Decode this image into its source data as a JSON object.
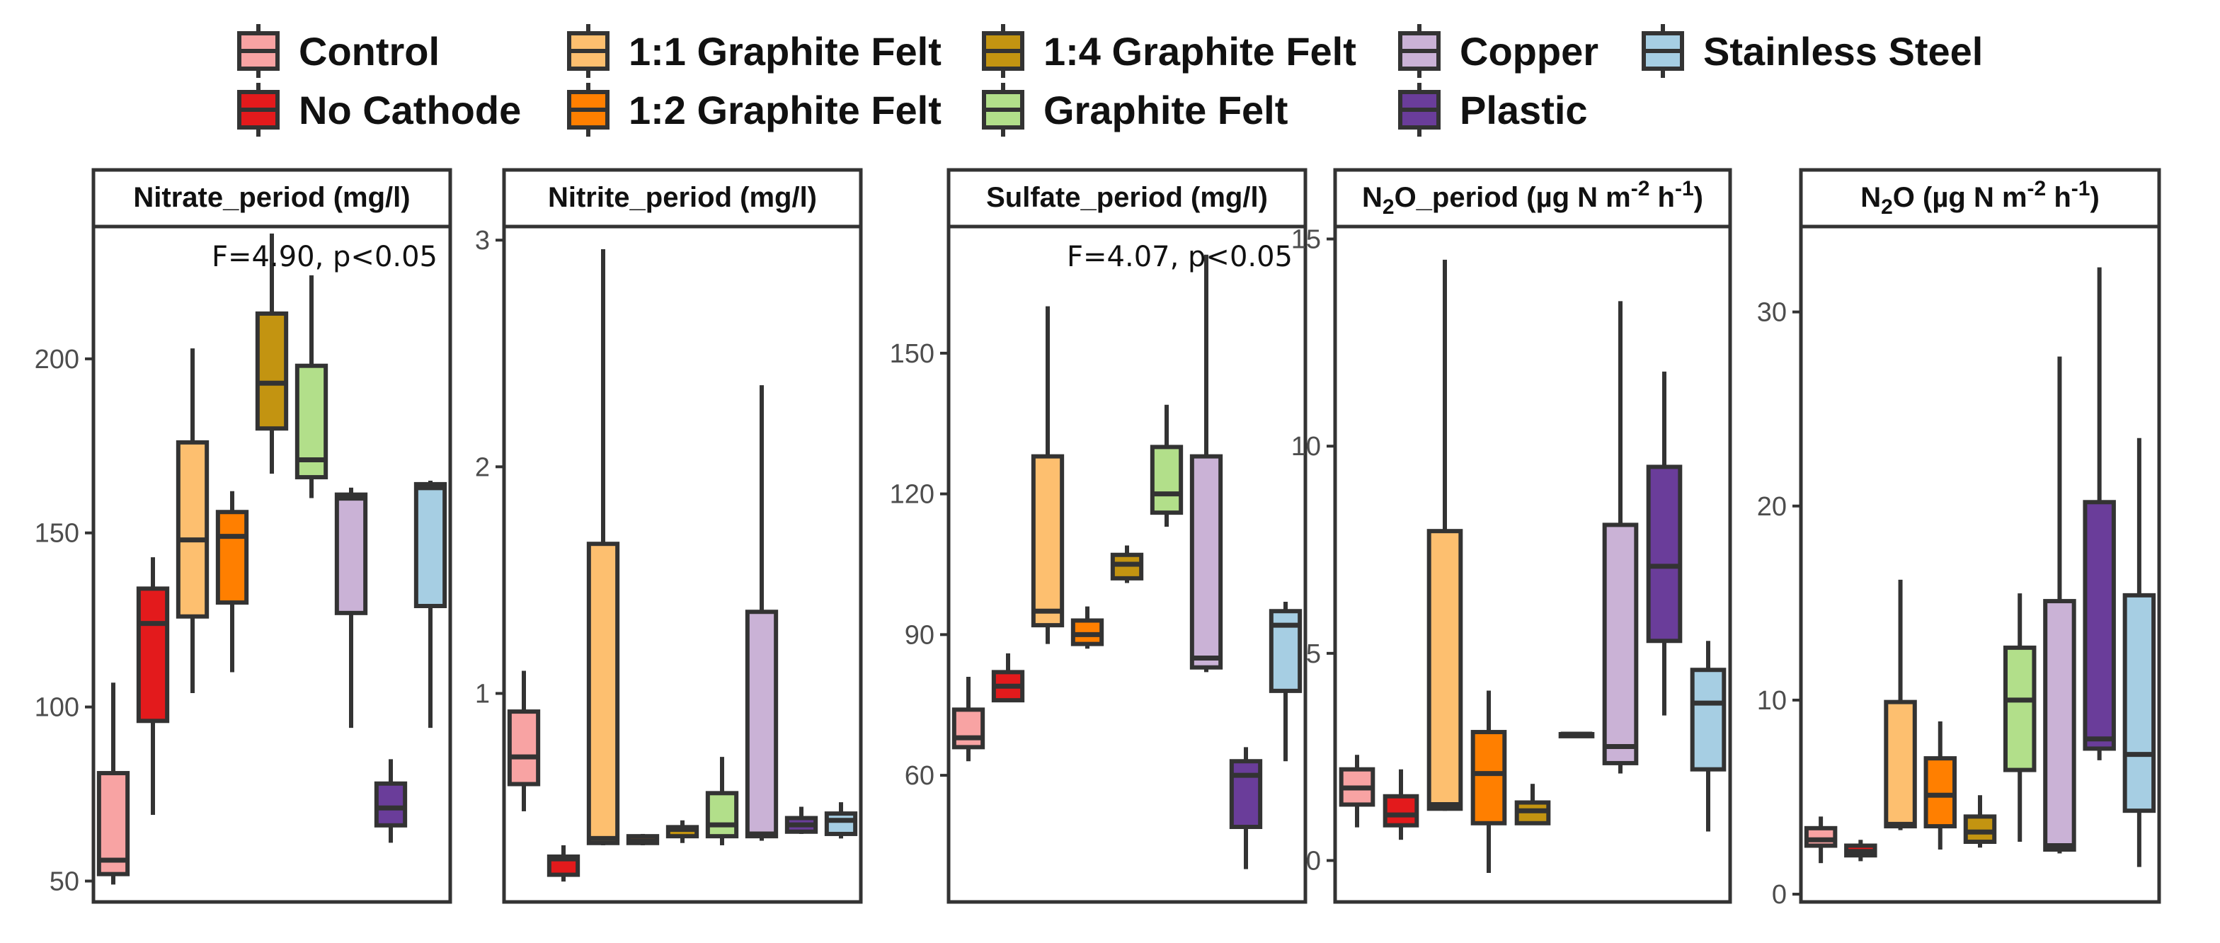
{
  "legend": {
    "items": [
      {
        "label": "Control",
        "color": "#F8A3A3"
      },
      {
        "label": "1:1 Graphite Felt",
        "color": "#FDBF6F"
      },
      {
        "label": "1:4 Graphite Felt",
        "color": "#C39411"
      },
      {
        "label": "Copper",
        "color": "#CAB2D6"
      },
      {
        "label": "Stainless Steel",
        "color": "#A6CEE3"
      },
      {
        "label": "No Cathode",
        "color": "#E31A1C"
      },
      {
        "label": "1:2 Graphite Felt",
        "color": "#FF7F00"
      },
      {
        "label": "Graphite Felt",
        "color": "#B2DF8A"
      },
      {
        "label": "Plastic",
        "color": "#6A3D9A"
      }
    ]
  },
  "chart_data": [
    {
      "type": "boxplot",
      "title": "Nitrate_period (mg/l)",
      "annotation": "F=4.90, p<0.05",
      "ylim": [
        44,
        238
      ],
      "yticks": [
        50,
        100,
        150,
        200
      ],
      "boxes": [
        {
          "group": "Control",
          "color": "#F8A3A3",
          "min": 49,
          "q1": 52,
          "median": 56,
          "q3": 81,
          "max": 107
        },
        {
          "group": "No Cathode",
          "color": "#E31A1C",
          "min": 69,
          "q1": 96,
          "median": 124,
          "q3": 134,
          "max": 143
        },
        {
          "group": "1:1 Graphite Felt",
          "color": "#FDBF6F",
          "min": 104,
          "q1": 126,
          "median": 148,
          "q3": 176,
          "max": 203
        },
        {
          "group": "1:2 Graphite Felt",
          "color": "#FF7F00",
          "min": 110,
          "q1": 130,
          "median": 149,
          "q3": 156,
          "max": 162
        },
        {
          "group": "1:4 Graphite Felt",
          "color": "#C39411",
          "min": 167,
          "q1": 180,
          "median": 193,
          "q3": 213,
          "max": 236
        },
        {
          "group": "Graphite Felt",
          "color": "#B2DF8A",
          "min": 160,
          "q1": 166,
          "median": 171,
          "q3": 198,
          "max": 224
        },
        {
          "group": "Copper",
          "color": "#CAB2D6",
          "min": 94,
          "q1": 127,
          "median": 160,
          "q3": 161,
          "max": 163
        },
        {
          "group": "Plastic",
          "color": "#6A3D9A",
          "min": 61,
          "q1": 66,
          "median": 71,
          "q3": 78,
          "max": 85
        },
        {
          "group": "Stainless Steel",
          "color": "#A6CEE3",
          "min": 94,
          "q1": 129,
          "median": 163,
          "q3": 164,
          "max": 165
        }
      ]
    },
    {
      "type": "boxplot",
      "title": "Nitrite_period (mg/l)",
      "annotation": "",
      "ylim": [
        0.08,
        3.06
      ],
      "yticks": [
        1,
        2,
        3
      ],
      "boxes": [
        {
          "group": "Control",
          "color": "#F8A3A3",
          "min": 0.48,
          "q1": 0.6,
          "median": 0.72,
          "q3": 0.92,
          "max": 1.1
        },
        {
          "group": "No Cathode",
          "color": "#E31A1C",
          "min": 0.17,
          "q1": 0.2,
          "median": 0.27,
          "q3": 0.28,
          "max": 0.33
        },
        {
          "group": "1:1 Graphite Felt",
          "color": "#FDBF6F",
          "min": 0.33,
          "q1": 0.34,
          "median": 0.36,
          "q3": 1.66,
          "max": 2.96
        },
        {
          "group": "1:2 Graphite Felt",
          "color": "#FF7F00",
          "min": 0.33,
          "q1": 0.34,
          "median": 0.35,
          "q3": 0.37,
          "max": 0.38
        },
        {
          "group": "1:4 Graphite Felt",
          "color": "#C39411",
          "min": 0.34,
          "q1": 0.37,
          "median": 0.4,
          "q3": 0.41,
          "max": 0.44
        },
        {
          "group": "Graphite Felt",
          "color": "#B2DF8A",
          "min": 0.33,
          "q1": 0.37,
          "median": 0.42,
          "q3": 0.56,
          "max": 0.72
        },
        {
          "group": "Copper",
          "color": "#CAB2D6",
          "min": 0.35,
          "q1": 0.37,
          "median": 0.38,
          "q3": 1.36,
          "max": 2.36
        },
        {
          "group": "Plastic",
          "color": "#6A3D9A",
          "min": 0.38,
          "q1": 0.39,
          "median": 0.42,
          "q3": 0.45,
          "max": 0.5
        },
        {
          "group": "Stainless Steel",
          "color": "#A6CEE3",
          "min": 0.36,
          "q1": 0.38,
          "median": 0.44,
          "q3": 0.47,
          "max": 0.52
        }
      ]
    },
    {
      "type": "boxplot",
      "title": "Sulfate_period (mg/l)",
      "annotation": "F=4.07, p<0.05",
      "ylim": [
        33,
        177
      ],
      "yticks": [
        60,
        90,
        120,
        150
      ],
      "boxes": [
        {
          "group": "Control",
          "color": "#F8A3A3",
          "min": 63,
          "q1": 66,
          "median": 68,
          "q3": 74,
          "max": 81
        },
        {
          "group": "No Cathode",
          "color": "#E31A1C",
          "min": 76,
          "q1": 76,
          "median": 79,
          "q3": 82,
          "max": 86
        },
        {
          "group": "1:1 Graphite Felt",
          "color": "#FDBF6F",
          "min": 88,
          "q1": 92,
          "median": 95,
          "q3": 128,
          "max": 160
        },
        {
          "group": "1:2 Graphite Felt",
          "color": "#FF7F00",
          "min": 87,
          "q1": 88,
          "median": 90,
          "q3": 93,
          "max": 96
        },
        {
          "group": "1:4 Graphite Felt",
          "color": "#C39411",
          "min": 101,
          "q1": 102,
          "median": 105,
          "q3": 107,
          "max": 109
        },
        {
          "group": "Graphite Felt",
          "color": "#B2DF8A",
          "min": 113,
          "q1": 116,
          "median": 120,
          "q3": 130,
          "max": 139
        },
        {
          "group": "Copper",
          "color": "#CAB2D6",
          "min": 82,
          "q1": 83,
          "median": 85,
          "q3": 128,
          "max": 171
        },
        {
          "group": "Plastic",
          "color": "#6A3D9A",
          "min": 40,
          "q1": 49,
          "median": 60,
          "q3": 63,
          "max": 66
        },
        {
          "group": "Stainless Steel",
          "color": "#A6CEE3",
          "min": 63,
          "q1": 78,
          "median": 92,
          "q3": 95,
          "max": 97
        }
      ]
    },
    {
      "type": "boxplot",
      "title": "N2O_period (µg N m-2 h-1)",
      "annotation": "",
      "ylim": [
        -1,
        15.3
      ],
      "yticks": [
        0,
        5,
        10,
        15
      ],
      "boxes": [
        {
          "group": "Control",
          "color": "#F8A3A3",
          "min": 0.8,
          "q1": 1.35,
          "median": 1.75,
          "q3": 2.2,
          "max": 2.55
        },
        {
          "group": "No Cathode",
          "color": "#E31A1C",
          "min": 0.5,
          "q1": 0.85,
          "median": 1.1,
          "q3": 1.55,
          "max": 2.2
        },
        {
          "group": "1:1 Graphite Felt",
          "color": "#FDBF6F",
          "min": 1.2,
          "q1": 1.25,
          "median": 1.35,
          "q3": 7.95,
          "max": 14.5
        },
        {
          "group": "1:2 Graphite Felt",
          "color": "#FF7F00",
          "min": -0.3,
          "q1": 0.9,
          "median": 2.1,
          "q3": 3.1,
          "max": 4.1
        },
        {
          "group": "1:4 Graphite Felt",
          "color": "#C39411",
          "min": 0.9,
          "q1": 0.9,
          "median": 1.2,
          "q3": 1.4,
          "max": 1.85
        },
        {
          "group": "Graphite Felt",
          "color": "#B2DF8A",
          "min": 3.0,
          "q1": 3.0,
          "median": 3.05,
          "q3": 3.05,
          "max": 3.1
        },
        {
          "group": "Copper",
          "color": "#CAB2D6",
          "min": 2.1,
          "q1": 2.35,
          "median": 2.75,
          "q3": 8.1,
          "max": 13.5
        },
        {
          "group": "Plastic",
          "color": "#6A3D9A",
          "min": 3.5,
          "q1": 5.3,
          "median": 7.1,
          "q3": 9.5,
          "max": 11.8
        },
        {
          "group": "Stainless Steel",
          "color": "#A6CEE3",
          "min": 0.7,
          "q1": 2.2,
          "median": 3.8,
          "q3": 4.6,
          "max": 5.3
        }
      ]
    },
    {
      "type": "boxplot",
      "title": "N2O (µg N m-2 h-1)",
      "annotation": "",
      "ylim": [
        -0.4,
        34.4
      ],
      "yticks": [
        0,
        10,
        20,
        30
      ],
      "boxes": [
        {
          "group": "Control",
          "color": "#F8A3A3",
          "min": 1.6,
          "q1": 2.5,
          "median": 2.8,
          "q3": 3.4,
          "max": 4.0
        },
        {
          "group": "No Cathode",
          "color": "#E31A1C",
          "min": 1.7,
          "q1": 2.0,
          "median": 2.2,
          "q3": 2.5,
          "max": 2.8
        },
        {
          "group": "1:1 Graphite Felt",
          "color": "#FDBF6F",
          "min": 3.3,
          "q1": 3.5,
          "median": 3.6,
          "q3": 9.9,
          "max": 16.2
        },
        {
          "group": "1:2 Graphite Felt",
          "color": "#FF7F00",
          "min": 2.3,
          "q1": 3.5,
          "median": 5.1,
          "q3": 7.0,
          "max": 8.9
        },
        {
          "group": "1:4 Graphite Felt",
          "color": "#C39411",
          "min": 2.4,
          "q1": 2.7,
          "median": 3.2,
          "q3": 4.0,
          "max": 5.1
        },
        {
          "group": "Graphite Felt",
          "color": "#B2DF8A",
          "min": 2.7,
          "q1": 6.4,
          "median": 10.0,
          "q3": 12.7,
          "max": 15.5
        },
        {
          "group": "Copper",
          "color": "#CAB2D6",
          "min": 2.1,
          "q1": 2.3,
          "median": 2.5,
          "q3": 15.1,
          "max": 27.7
        },
        {
          "group": "Plastic",
          "color": "#6A3D9A",
          "min": 6.9,
          "q1": 7.5,
          "median": 8.0,
          "q3": 20.2,
          "max": 32.3
        },
        {
          "group": "Stainless Steel",
          "color": "#A6CEE3",
          "min": 1.4,
          "q1": 4.3,
          "median": 7.2,
          "q3": 15.4,
          "max": 23.5
        }
      ]
    }
  ]
}
